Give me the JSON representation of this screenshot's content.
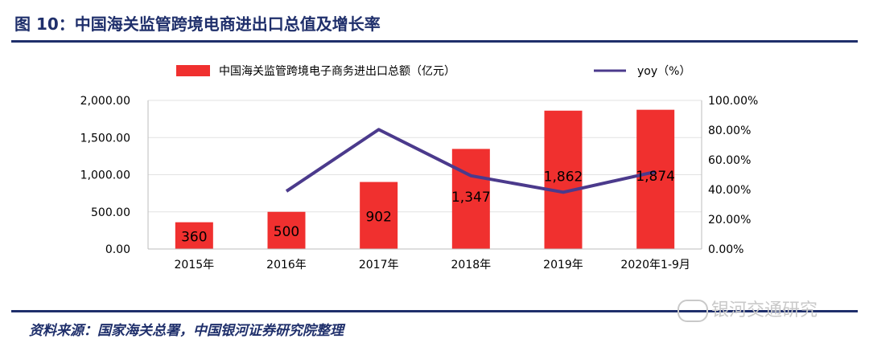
{
  "figure": {
    "title": "图 10：中国海关监管跨境电商进出口总值及增长率",
    "source": "资料来源：国家海关总署，中国银河证券研究院整理",
    "watermark": "银河交通研究"
  },
  "chart_data": {
    "type": "bar",
    "categories": [
      "2015年",
      "2016年",
      "2017年",
      "2018年",
      "2019年",
      "2020年1-9月"
    ],
    "series": [
      {
        "name": "中国海关监管跨境电子商务进出口总额（亿元）",
        "type": "bar",
        "axis": "left",
        "color": "#f0302f",
        "values": [
          360,
          500,
          902,
          1347,
          1862,
          1874
        ],
        "data_labels": [
          "360",
          "500",
          "902",
          "1,347",
          "1,862",
          "1,874"
        ]
      },
      {
        "name": "yoy（%）",
        "type": "line",
        "axis": "right",
        "color": "#4b3a8c",
        "values": [
          null,
          38.9,
          80.4,
          49.3,
          38.2,
          52.0
        ]
      }
    ],
    "y_left": {
      "ylim": [
        0,
        2000
      ],
      "ticks": [
        "0.00",
        "500.00",
        "1,000.00",
        "1,500.00",
        "2,000.00"
      ],
      "tick_values": [
        0,
        500,
        1000,
        1500,
        2000
      ]
    },
    "y_right": {
      "ylim": [
        0,
        100
      ],
      "ticks": [
        "0.00%",
        "20.00%",
        "40.00%",
        "60.00%",
        "80.00%",
        "100.00%"
      ],
      "tick_values": [
        0,
        20,
        40,
        60,
        80,
        100
      ]
    },
    "grid": true,
    "legend_position": "top"
  }
}
